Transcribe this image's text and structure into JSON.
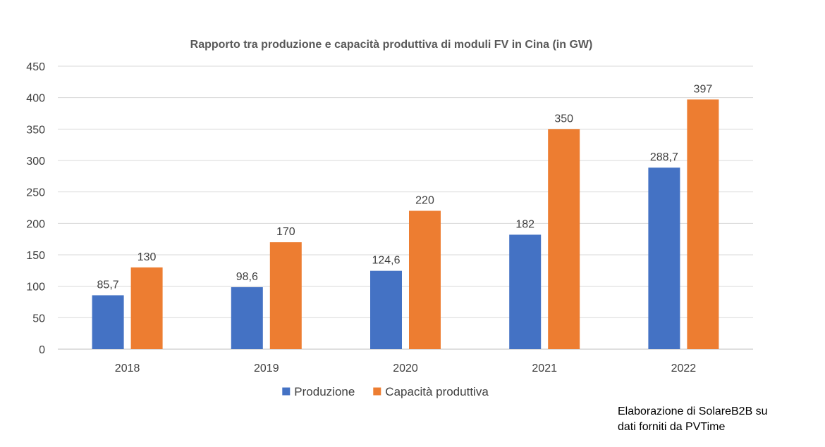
{
  "chart_data": {
    "type": "bar",
    "title": "Rapporto tra produzione e capacità produttiva di moduli FV in Cina (in GW)",
    "categories": [
      "2018",
      "2019",
      "2020",
      "2021",
      "2022"
    ],
    "series": [
      {
        "name": "Produzione",
        "color": "#4472C4",
        "values": [
          85.7,
          98.6,
          124.6,
          182,
          288.7
        ],
        "labels": [
          "85,7",
          "98,6",
          "124,6",
          "182",
          "288,7"
        ]
      },
      {
        "name": "Capacità produttiva",
        "color": "#ED7D31",
        "values": [
          130,
          170,
          220,
          350,
          397
        ],
        "labels": [
          "130",
          "170",
          "220",
          "350",
          "397"
        ]
      }
    ],
    "ylim": [
      0,
      450
    ],
    "yticks": [
      "0",
      "50",
      "100",
      "150",
      "200",
      "250",
      "300",
      "350",
      "400",
      "450"
    ],
    "grid": true,
    "legend_position": "bottom",
    "xlabel": "",
    "ylabel": ""
  },
  "credit": {
    "line1": "Elaborazione di SolareB2B su",
    "line2": "dati forniti da PVTime"
  }
}
